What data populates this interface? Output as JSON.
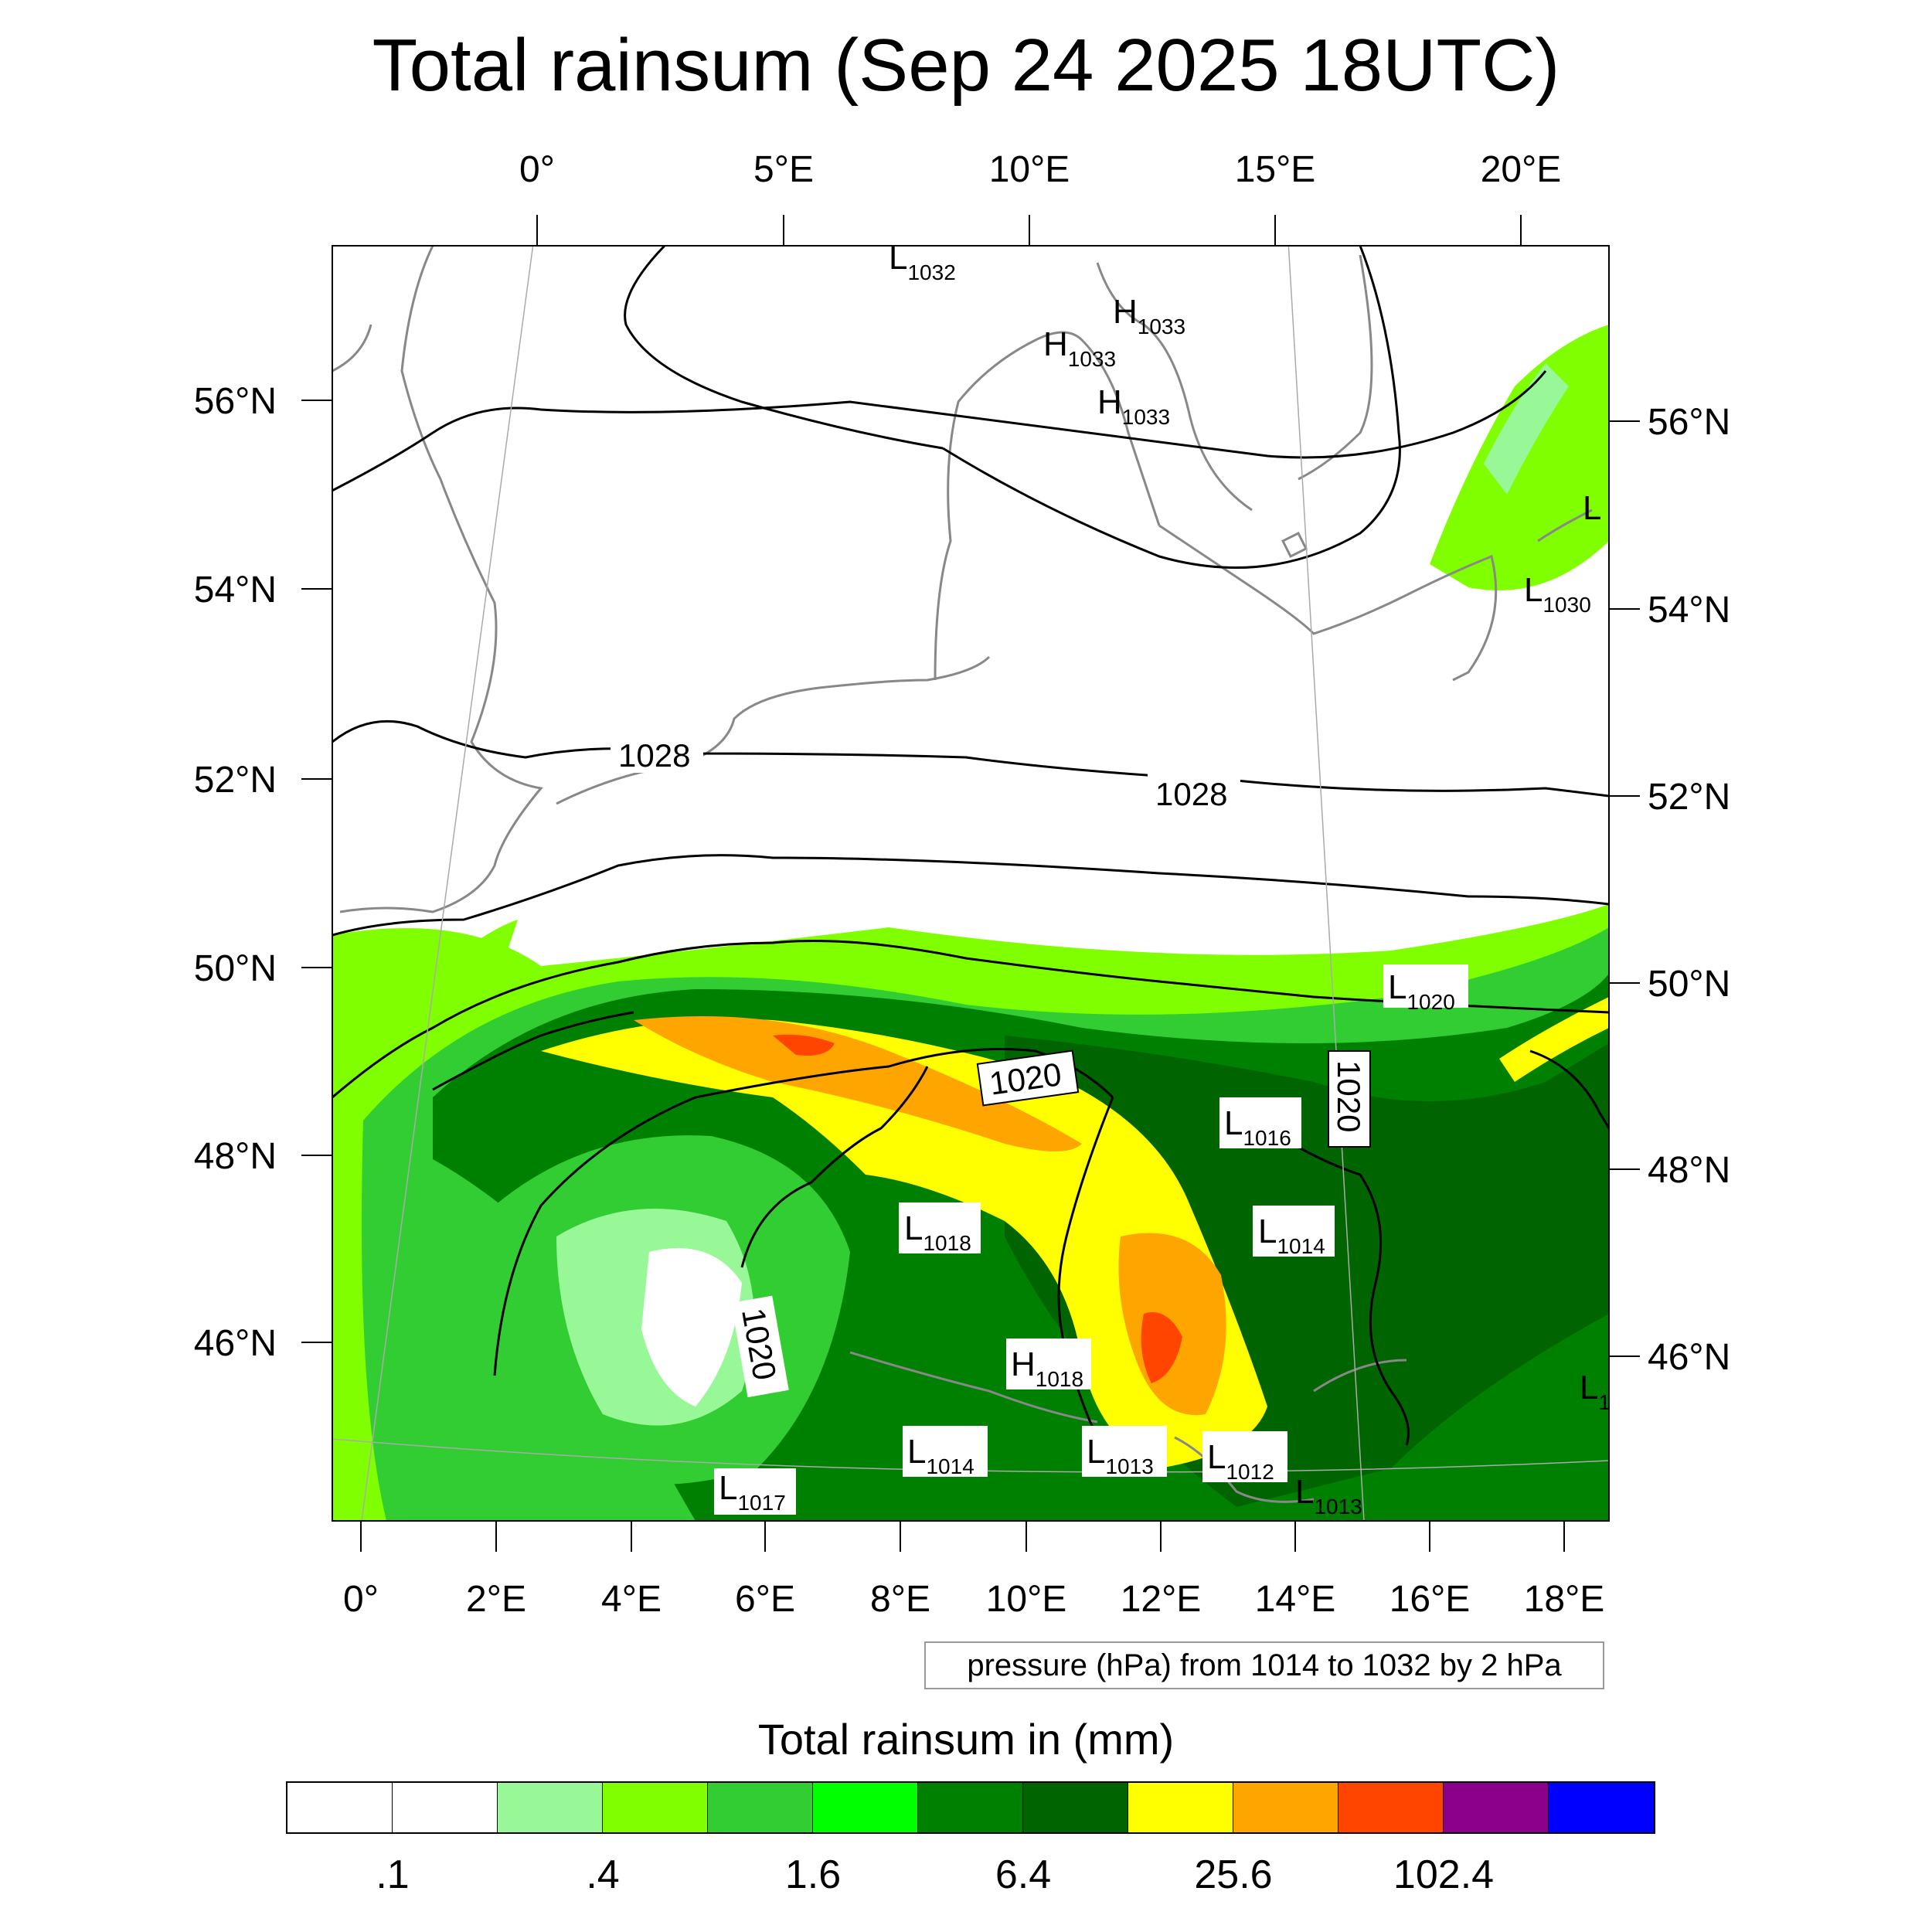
{
  "title": "Total rainsum (Sep 24 2025 18UTC)",
  "top_lon_labels": [
    "0°",
    "5°E",
    "10°E",
    "15°E",
    "20°E"
  ],
  "bottom_lon_labels": [
    "0°",
    "2°E",
    "4°E",
    "6°E",
    "8°E",
    "10°E",
    "12°E",
    "14°E",
    "16°E",
    "18°E"
  ],
  "left_lat_labels": [
    "56°N",
    "54°N",
    "52°N",
    "50°N",
    "48°N",
    "46°N"
  ],
  "right_lat_labels": [
    "56°N",
    "54°N",
    "52°N",
    "50°N",
    "48°N",
    "46°N"
  ],
  "pressure_systems": [
    {
      "type": "L",
      "value": "1032"
    },
    {
      "type": "H",
      "value": "1033"
    },
    {
      "type": "H",
      "value": "1033"
    },
    {
      "type": "H",
      "value": "1033"
    },
    {
      "type": "L",
      "value": "1030"
    },
    {
      "type": "L",
      "value": "1020"
    },
    {
      "type": "L",
      "value": "1016"
    },
    {
      "type": "L",
      "value": "1018"
    },
    {
      "type": "L",
      "value": "1014"
    },
    {
      "type": "H",
      "value": "1018"
    },
    {
      "type": "L",
      "value": "1014"
    },
    {
      "type": "L",
      "value": "1013"
    },
    {
      "type": "L",
      "value": "1012"
    },
    {
      "type": "L",
      "value": "1017"
    },
    {
      "type": "L",
      "value": "1013"
    },
    {
      "type": "L",
      "value": ""
    },
    {
      "type": "L",
      "value": "1"
    }
  ],
  "contour_labels": [
    "1028",
    "1028",
    "1020",
    "1020",
    "1020"
  ],
  "pressure_note": "pressure (hPa) from 1014 to 1032 by 2 hPa",
  "colorbar": {
    "title": "Total rainsum in (mm)",
    "colors": [
      "#ffffff",
      "#ffffff",
      "#98f898",
      "#80ff00",
      "#32cd32",
      "#00ff00",
      "#008000",
      "#006400",
      "#ffff00",
      "#ffa500",
      "#ff4500",
      "#8b008b",
      "#0000ff"
    ],
    "labels": [
      ".1",
      ".4",
      "1.6",
      "6.4",
      "25.6",
      "102.4"
    ]
  }
}
